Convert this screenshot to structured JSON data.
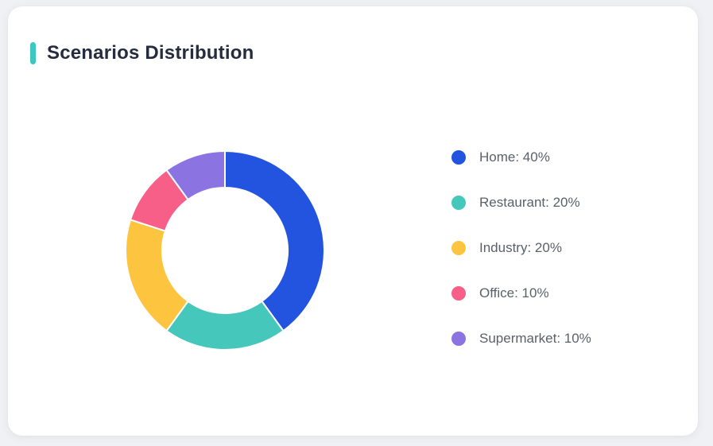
{
  "page": {
    "background": "#F0F1F4"
  },
  "card": {
    "title": "Scenarios Distribution",
    "accent_color": "#3DC7BE",
    "title_color": "#252C3E",
    "background": "#FFFFFF"
  },
  "chart_data": {
    "type": "pie",
    "title": "Scenarios Distribution",
    "donut": true,
    "inner_radius_ratio": 0.632,
    "start_angle_deg": 0,
    "clockwise": true,
    "legend_position": "right",
    "unit": "%",
    "categories": [
      "Home",
      "Restaurant",
      "Industry",
      "Office",
      "Supermarket"
    ],
    "values": [
      40,
      20,
      20,
      10,
      10
    ],
    "colors": [
      "#2254E0",
      "#45C7BB",
      "#FDC43F",
      "#F75F88",
      "#8B73E2"
    ],
    "legend_labels": [
      "Home: 40%",
      "Restaurant: 20%",
      "Industry: 20%",
      "Office: 10%",
      "Supermarket: 10%"
    ],
    "slice_gap_color": "#FFFFFF",
    "legend_text_color": "#5B6069"
  }
}
